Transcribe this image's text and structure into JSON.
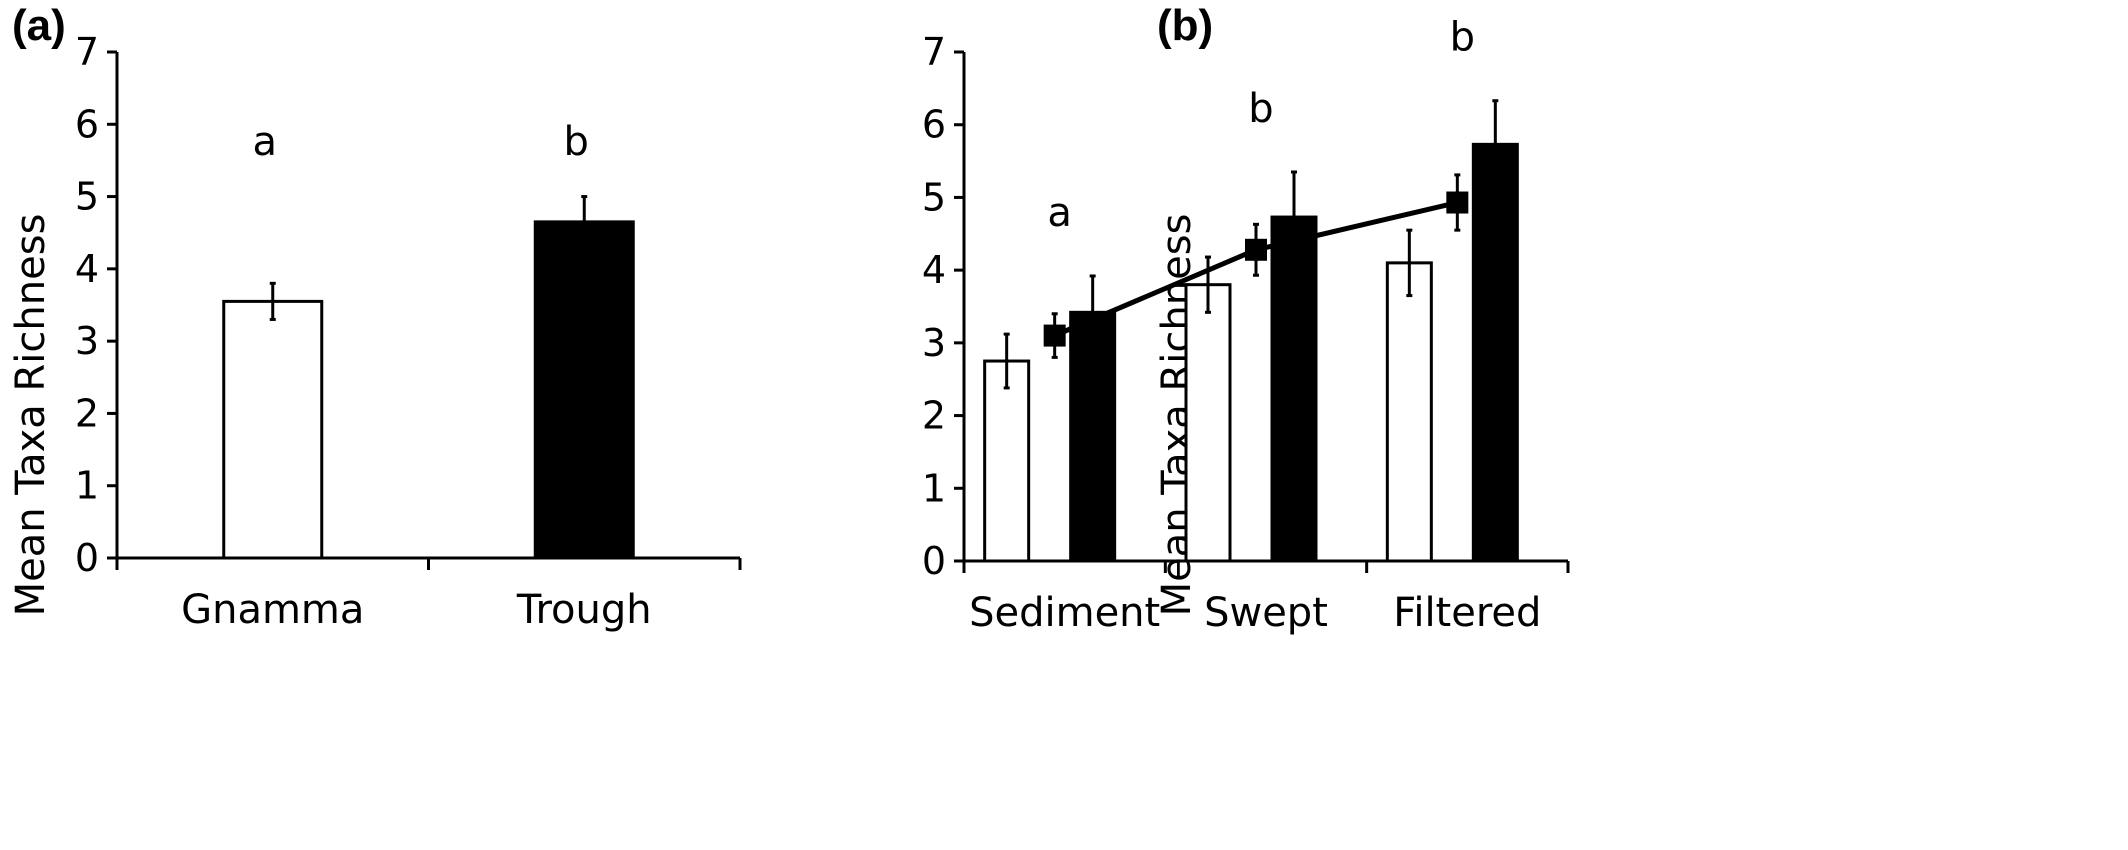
{
  "chart_data": [
    {
      "panel": "(a)",
      "type": "bar",
      "ylabel": "Mean Taxa Richness",
      "xlabel": "",
      "ylim": [
        0,
        7
      ],
      "yticks": [
        "0",
        "1",
        "2",
        "3",
        "4",
        "5",
        "6",
        "7"
      ],
      "categories": [
        "Gnamma",
        "Trough"
      ],
      "values": [
        3.55,
        4.65
      ],
      "errors": [
        0.25,
        0.35
      ],
      "colors": [
        "#ffffff",
        "#000000"
      ],
      "significance": [
        "a",
        "b"
      ]
    },
    {
      "panel": "(b)",
      "type": "bar",
      "ylabel": "Mean Taxa Richness",
      "xlabel": "",
      "ylim": [
        0,
        7
      ],
      "yticks": [
        "0",
        "1",
        "2",
        "3",
        "4",
        "5",
        "6",
        "7"
      ],
      "categories": [
        "Sediment",
        "Swept",
        "Filtered"
      ],
      "series": [
        {
          "type": "bar",
          "color": "#ffffff",
          "values": [
            2.75,
            3.8,
            4.1
          ],
          "errors": [
            0.37,
            0.38,
            0.45
          ]
        },
        {
          "type": "bar",
          "color": "#000000",
          "values": [
            3.42,
            4.73,
            5.73
          ],
          "errors": [
            0.5,
            0.62,
            0.6
          ]
        },
        {
          "type": "line",
          "marker": "square",
          "color": "#000000",
          "values": [
            3.1,
            4.28,
            4.93
          ],
          "errors": [
            0.3,
            0.35,
            0.38
          ]
        }
      ],
      "significance": [
        "a",
        "b",
        "b"
      ]
    }
  ]
}
